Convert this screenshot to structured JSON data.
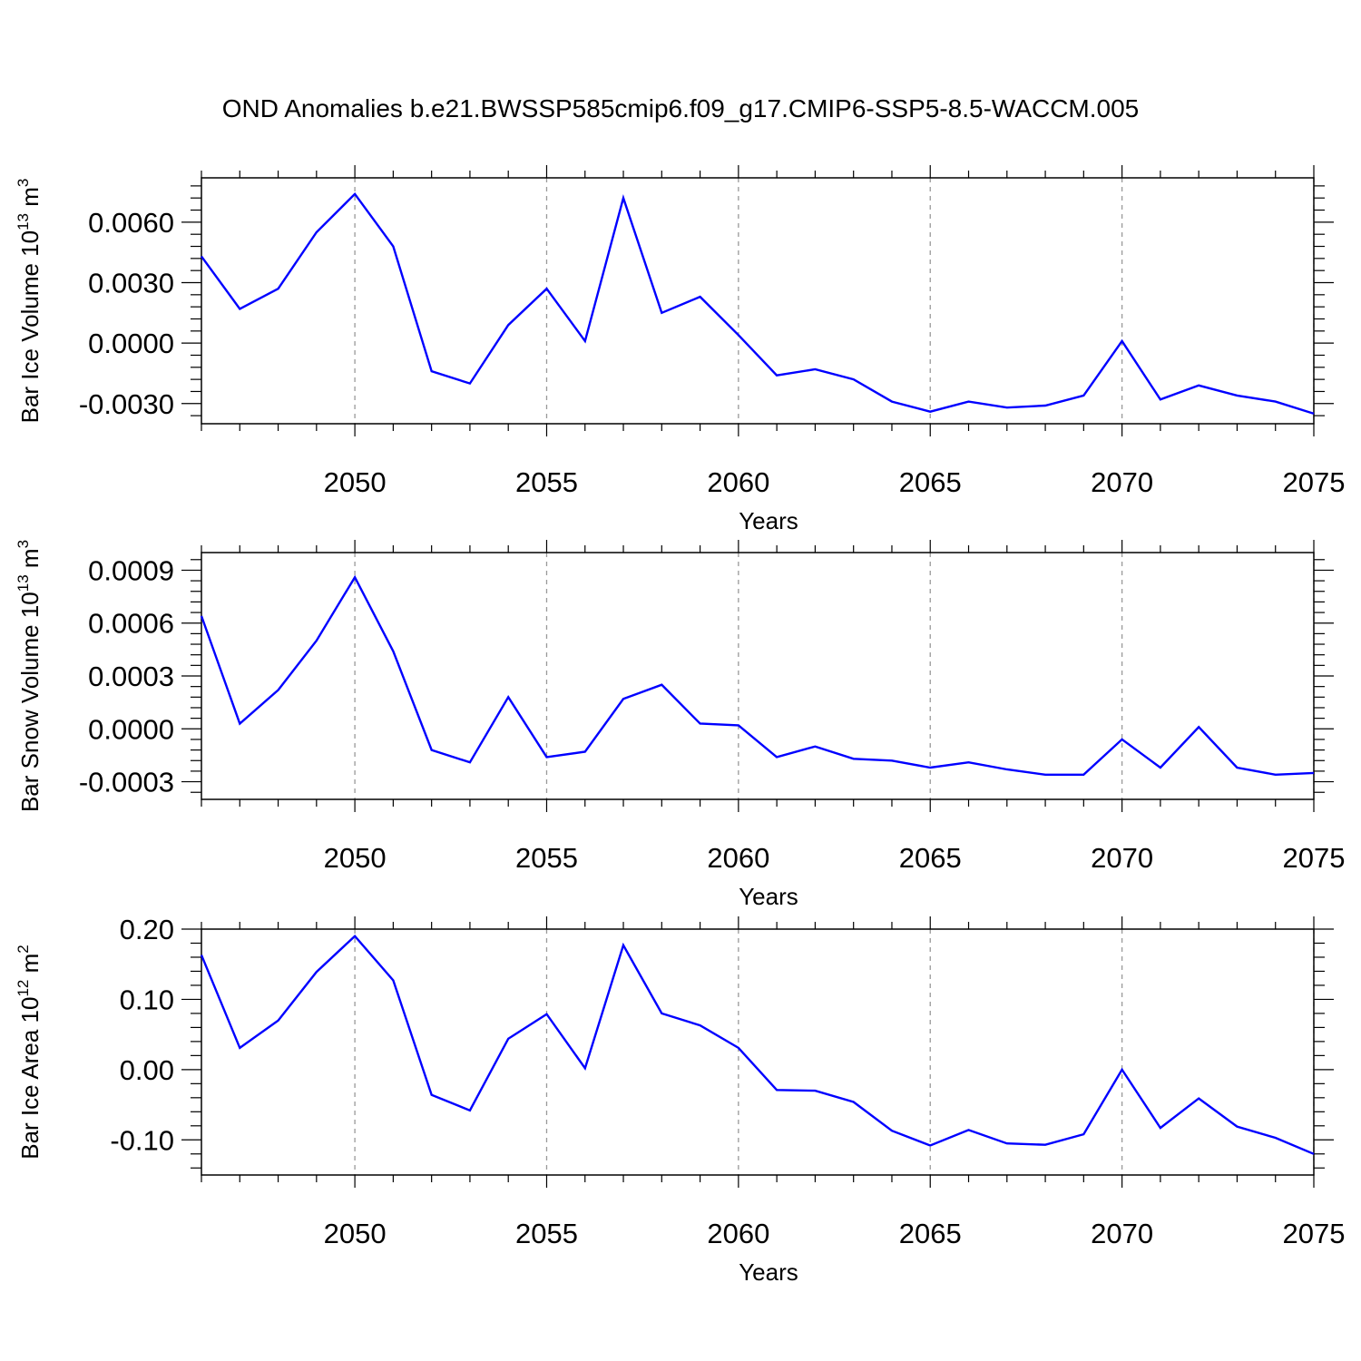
{
  "title": "OND Anomalies b.e21.BWSSP585cmip6.f09_g17.CMIP6-SSP5-8.5-WACCM.005",
  "colors": {
    "line": "#0000ff",
    "grid": "#999999",
    "axis": "#000000"
  },
  "chart_data": [
    {
      "type": "line",
      "title": "",
      "xlabel": "Years",
      "ylabel": "Bar Ice Volume 10",
      "ylabel_exponent": "13",
      "ylabel_unit": " m",
      "ylabel_unit_exponent": "3",
      "xlim": [
        2046,
        2075
      ],
      "ylim": [
        -0.004,
        0.0082
      ],
      "xticks": [
        "2050",
        "2055",
        "2060",
        "2065",
        "2070",
        "2075"
      ],
      "yticks": [
        "0.0060",
        "0.0030",
        "0.0000",
        "-0.0030"
      ],
      "x": [
        2046,
        2047,
        2048,
        2049,
        2050,
        2051,
        2052,
        2053,
        2054,
        2055,
        2056,
        2057,
        2058,
        2059,
        2060,
        2061,
        2062,
        2063,
        2064,
        2065,
        2066,
        2067,
        2068,
        2069,
        2070,
        2071,
        2072,
        2073,
        2074,
        2075
      ],
      "series": [
        {
          "name": "Bar Ice Volume",
          "values": [
            0.0043,
            0.0017,
            0.0027,
            0.0055,
            0.0074,
            0.0048,
            -0.0014,
            -0.002,
            0.0009,
            0.0027,
            0.0001,
            0.0072,
            0.0015,
            0.0023,
            0.0004,
            -0.0016,
            -0.0013,
            -0.0018,
            -0.0029,
            -0.0034,
            -0.0029,
            -0.0032,
            -0.0031,
            -0.0026,
            0.0001,
            -0.0028,
            -0.0021,
            -0.0026,
            -0.0029,
            -0.0035
          ]
        }
      ]
    },
    {
      "type": "line",
      "title": "",
      "xlabel": "Years",
      "ylabel": "Bar Snow Volume 10",
      "ylabel_exponent": "13",
      "ylabel_unit": " m",
      "ylabel_unit_exponent": "3",
      "xlim": [
        2046,
        2075
      ],
      "ylim": [
        -0.0004,
        0.001
      ],
      "xticks": [
        "2050",
        "2055",
        "2060",
        "2065",
        "2070",
        "2075"
      ],
      "yticks": [
        "0.0009",
        "0.0006",
        "0.0003",
        "0.0000",
        "-0.0003"
      ],
      "x": [
        2046,
        2047,
        2048,
        2049,
        2050,
        2051,
        2052,
        2053,
        2054,
        2055,
        2056,
        2057,
        2058,
        2059,
        2060,
        2061,
        2062,
        2063,
        2064,
        2065,
        2066,
        2067,
        2068,
        2069,
        2070,
        2071,
        2072,
        2073,
        2074,
        2075
      ],
      "series": [
        {
          "name": "Bar Snow Volume",
          "values": [
            0.00064,
            3e-05,
            0.00022,
            0.0005,
            0.00086,
            0.00044,
            -0.00012,
            -0.00019,
            0.00018,
            -0.00016,
            -0.00013,
            0.00017,
            0.00025,
            3e-05,
            2e-05,
            -0.00016,
            -0.0001,
            -0.00017,
            -0.00018,
            -0.00022,
            -0.00019,
            -0.00023,
            -0.00026,
            -0.00026,
            -6e-05,
            -0.00022,
            1e-05,
            -0.00022,
            -0.00026,
            -0.00025
          ]
        }
      ]
    },
    {
      "type": "line",
      "title": "",
      "xlabel": "Years",
      "ylabel": "Bar Ice Area 10",
      "ylabel_exponent": "12",
      "ylabel_unit": " m",
      "ylabel_unit_exponent": "2",
      "xlim": [
        2046,
        2075
      ],
      "ylim": [
        -0.15,
        0.2
      ],
      "xticks": [
        "2050",
        "2055",
        "2060",
        "2065",
        "2070",
        "2075"
      ],
      "yticks": [
        "0.20",
        "0.10",
        "0.00",
        "-0.10"
      ],
      "x": [
        2046,
        2047,
        2048,
        2049,
        2050,
        2051,
        2052,
        2053,
        2054,
        2055,
        2056,
        2057,
        2058,
        2059,
        2060,
        2061,
        2062,
        2063,
        2064,
        2065,
        2066,
        2067,
        2068,
        2069,
        2070,
        2071,
        2072,
        2073,
        2074,
        2075
      ],
      "series": [
        {
          "name": "Bar Ice Area",
          "values": [
            0.163,
            0.031,
            0.07,
            0.139,
            0.19,
            0.127,
            -0.036,
            -0.058,
            0.044,
            0.079,
            0.002,
            0.177,
            0.08,
            0.063,
            0.031,
            -0.029,
            -0.03,
            -0.046,
            -0.087,
            -0.108,
            -0.086,
            -0.105,
            -0.107,
            -0.092,
            0.0,
            -0.083,
            -0.041,
            -0.081,
            -0.097,
            -0.12
          ]
        }
      ]
    }
  ]
}
